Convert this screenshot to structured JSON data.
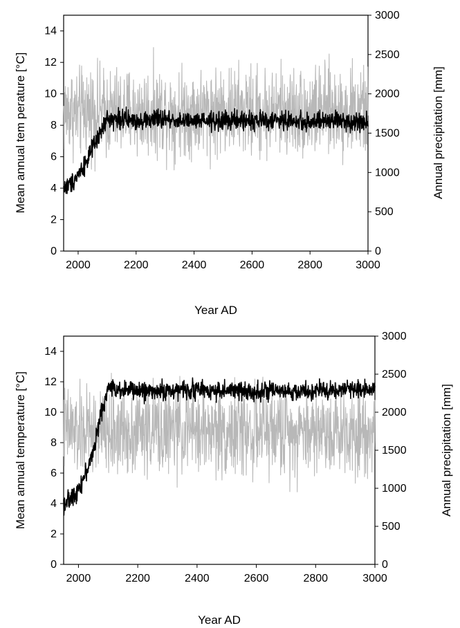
{
  "chart_data": [
    {
      "type": "line",
      "xlabel": "Year AD",
      "ylabel": "Mean annual tem perature [°C]",
      "y2label": "Annual precipitation [mm]",
      "xlim": [
        1950,
        3000
      ],
      "ylim": [
        0,
        15
      ],
      "y2lim": [
        0,
        3000
      ],
      "xticks": [
        2000,
        2200,
        2400,
        2600,
        2800,
        3000
      ],
      "yticks": [
        0,
        2,
        4,
        6,
        8,
        10,
        12,
        14
      ],
      "y2ticks": [
        0,
        500,
        1000,
        1500,
        2000,
        2500,
        3000
      ],
      "series": [
        {
          "axis": "right",
          "color": "#b8b8b8",
          "x": [
            1950,
            1975,
            2000,
            2025,
            2050,
            2075,
            2100,
            2150,
            2200,
            2300,
            2400,
            2500,
            2600,
            2700,
            2800,
            2900,
            3000
          ],
          "values": [
            1750,
            1800,
            1720,
            1800,
            1780,
            1760,
            1750,
            1770,
            1760,
            1780,
            1770,
            1790,
            1760,
            1780,
            1770,
            1790,
            1760
          ],
          "variability": 420
        },
        {
          "axis": "left",
          "color": "#000000",
          "x": [
            1950,
            1975,
            2000,
            2025,
            2050,
            2075,
            2100,
            2150,
            2200,
            2300,
            2400,
            2500,
            2600,
            2700,
            2800,
            2900,
            3000
          ],
          "values": [
            4.0,
            4.3,
            4.9,
            5.6,
            6.5,
            7.4,
            8.4,
            8.4,
            8.3,
            8.4,
            8.2,
            8.3,
            8.3,
            8.3,
            8.2,
            8.3,
            8.2
          ],
          "variability": 0.45
        }
      ]
    },
    {
      "type": "line",
      "xlabel": "Year AD",
      "ylabel": "Mean annual temperature [°C]",
      "y2label": "Annual precipitation [mm]",
      "xlim": [
        1950,
        3000
      ],
      "ylim": [
        0,
        15
      ],
      "y2lim": [
        0,
        3000
      ],
      "xticks": [
        2000,
        2200,
        2400,
        2600,
        2800,
        3000
      ],
      "yticks": [
        0,
        2,
        4,
        6,
        8,
        10,
        12,
        14
      ],
      "y2ticks": [
        0,
        500,
        1000,
        1500,
        2000,
        2500,
        3000
      ],
      "series": [
        {
          "axis": "right",
          "color": "#b8b8b8",
          "x": [
            1950,
            1975,
            2000,
            2025,
            2050,
            2075,
            2100,
            2150,
            2200,
            2300,
            2400,
            2500,
            2600,
            2700,
            2800,
            2900,
            3000
          ],
          "values": [
            1750,
            1780,
            1700,
            1760,
            1740,
            1720,
            1720,
            1760,
            1780,
            1760,
            1770,
            1750,
            1760,
            1750,
            1770,
            1760,
            1800
          ],
          "variability": 430
        },
        {
          "axis": "left",
          "color": "#000000",
          "x": [
            1950,
            1975,
            2000,
            2025,
            2050,
            2075,
            2100,
            2150,
            2200,
            2300,
            2400,
            2500,
            2600,
            2700,
            2800,
            2900,
            3000
          ],
          "values": [
            4.0,
            4.3,
            5.0,
            6.0,
            7.4,
            9.8,
            11.6,
            11.5,
            11.4,
            11.4,
            11.5,
            11.4,
            11.4,
            11.3,
            11.4,
            11.5,
            11.6
          ],
          "variability": 0.45
        }
      ]
    }
  ]
}
